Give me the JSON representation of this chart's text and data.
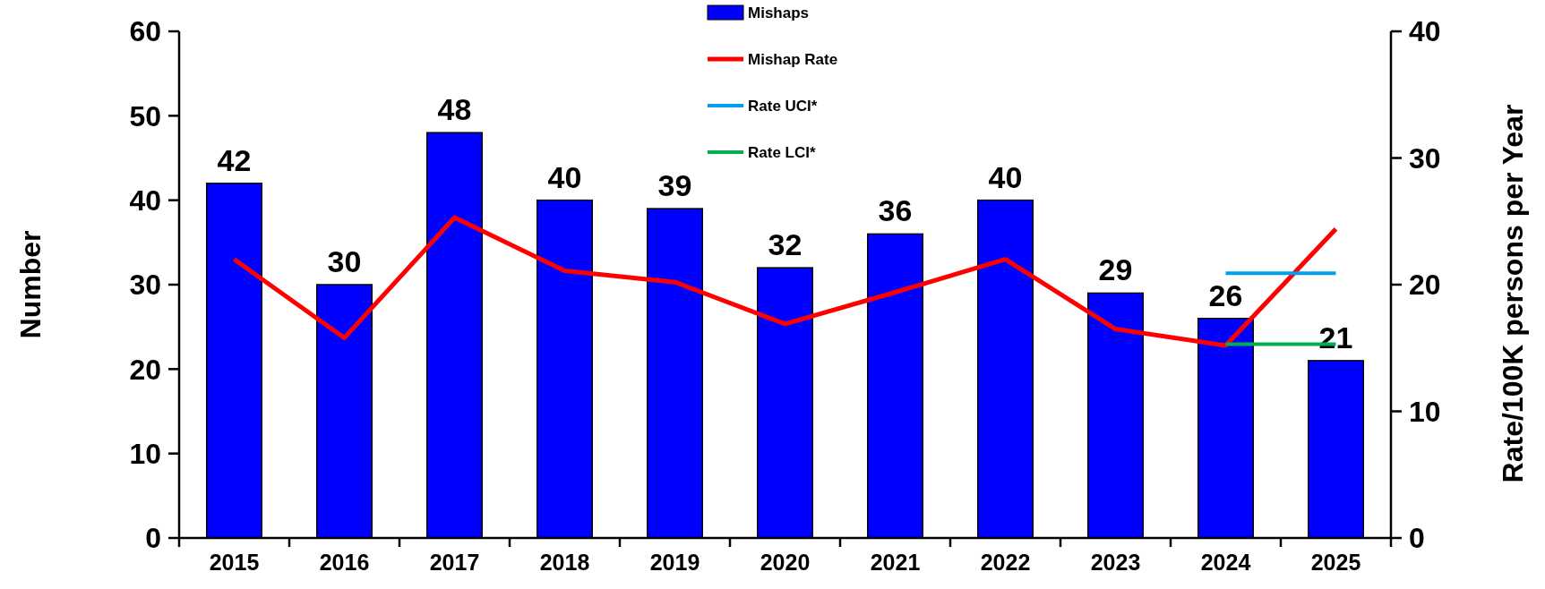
{
  "chart_data": {
    "type": "bar",
    "xlabel": null,
    "ylabel": "Number",
    "y2label": "Rate/100K persons per Year",
    "categories": [
      "2015",
      "2016",
      "2017",
      "2018",
      "2019",
      "2020",
      "2021",
      "2022",
      "2023",
      "2024",
      "2025"
    ],
    "series": [
      {
        "name": "Mishaps",
        "color": "#0000ff",
        "values": [
          42,
          30,
          48,
          40,
          39,
          32,
          36,
          40,
          29,
          26,
          21
        ],
        "value_labels": [
          "42",
          "30",
          "48",
          "40",
          "39",
          "32",
          "36",
          "40",
          "29",
          "26",
          "21"
        ]
      },
      {
        "name": "Mishap Rate",
        "type": "line",
        "axis": "y2",
        "color": "#ff0000",
        "values": [
          22.0,
          15.8,
          25.3,
          21.1,
          20.2,
          16.9,
          19.4,
          22.0,
          16.5,
          15.2,
          24.4
        ]
      },
      {
        "name": "Rate UCI*",
        "type": "line",
        "axis": "y2",
        "color": "#00a0f0",
        "values": [
          null,
          null,
          null,
          null,
          null,
          null,
          null,
          null,
          null,
          20.9,
          20.9
        ]
      },
      {
        "name": "Rate LCI*",
        "type": "line",
        "axis": "y2",
        "color": "#00b050",
        "values": [
          null,
          null,
          null,
          null,
          null,
          null,
          null,
          null,
          null,
          15.3,
          15.3
        ]
      }
    ],
    "ylim": [
      0,
      60
    ],
    "yticks": [
      0,
      10,
      20,
      30,
      40,
      50,
      60
    ],
    "y2lim": [
      0,
      40
    ],
    "y2ticks": [
      0,
      10,
      20,
      30,
      40
    ],
    "legend": "top",
    "grid": false
  }
}
